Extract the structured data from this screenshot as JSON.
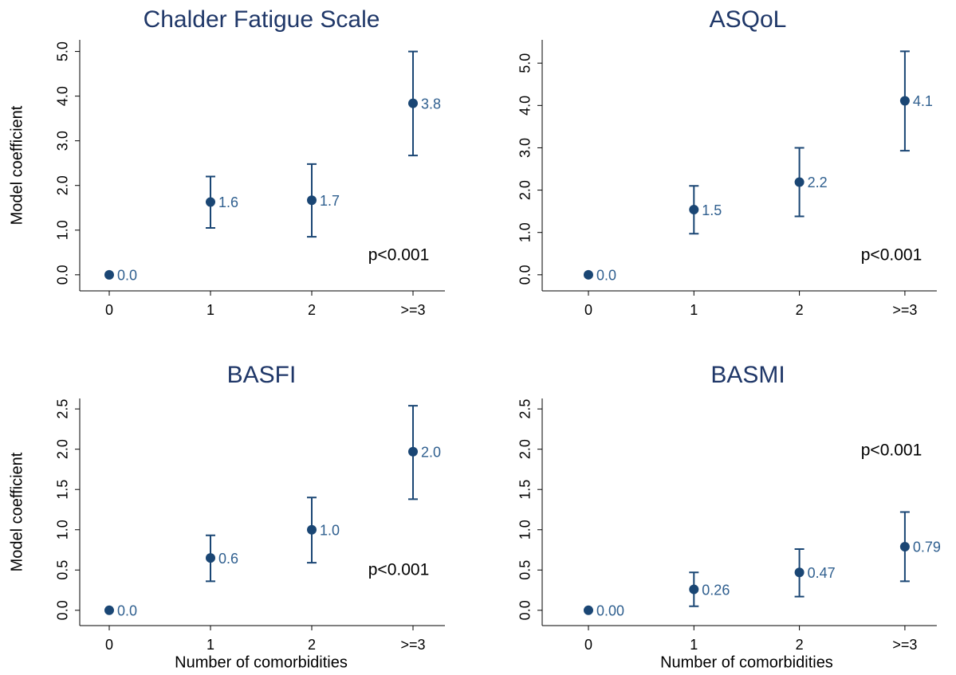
{
  "chart_data": [
    {
      "type": "errorbar",
      "title": "Chalder Fatigue Scale",
      "ylabel": "Model coefficient",
      "categories": [
        "0",
        "1",
        "2",
        ">=3"
      ],
      "values": [
        0,
        1.63,
        1.67,
        3.84
      ],
      "value_labels": [
        "0.0",
        "1.6",
        "1.7",
        "3.8"
      ],
      "lower": [
        0,
        1.05,
        0.85,
        2.67
      ],
      "upper": [
        0,
        2.2,
        2.48,
        5.0
      ],
      "color": "#1a4674",
      "annotation": "p<0.001",
      "ylim": [
        -0.36,
        5.26
      ],
      "yticks": [
        {
          "value": 0,
          "label": "0.0"
        },
        {
          "value": 1,
          "label": "1.0"
        },
        {
          "value": 2,
          "label": "2.0"
        },
        {
          "value": 3,
          "label": "3.0"
        },
        {
          "value": 4,
          "label": "4.0"
        },
        {
          "value": 5,
          "label": "5.0"
        }
      ]
    },
    {
      "type": "errorbar",
      "title": "ASQoL",
      "categories": [
        "0",
        "1",
        "2",
        ">=3"
      ],
      "values": [
        0,
        1.54,
        2.19,
        4.11
      ],
      "value_labels": [
        "0.0",
        "1.5",
        "2.2",
        "4.1"
      ],
      "lower": [
        0,
        0.97,
        1.38,
        2.93
      ],
      "upper": [
        0,
        2.1,
        3.0,
        5.28
      ],
      "color": "#1a4674",
      "annotation": "p<0.001",
      "ylim": [
        -0.38,
        5.55
      ],
      "yticks": [
        {
          "value": 0,
          "label": "0.0"
        },
        {
          "value": 1,
          "label": "1.0"
        },
        {
          "value": 2,
          "label": "2.0"
        },
        {
          "value": 3,
          "label": "3.0"
        },
        {
          "value": 4,
          "label": "4.0"
        },
        {
          "value": 5,
          "label": "5.0"
        }
      ]
    },
    {
      "type": "errorbar",
      "title": "BASFI",
      "ylabel": "Model coefficient",
      "xlabel": "Number of comorbidities",
      "categories": [
        "0",
        "1",
        "2",
        ">=3"
      ],
      "values": [
        0,
        0.65,
        1.0,
        1.97
      ],
      "value_labels": [
        "0.0",
        "0.6",
        "1.0",
        "2.0"
      ],
      "lower": [
        0,
        0.36,
        0.59,
        1.38
      ],
      "upper": [
        0,
        0.93,
        1.4,
        2.54
      ],
      "color": "#1a4674",
      "annotation": "p<0.001",
      "ylim": [
        -0.19,
        2.63
      ],
      "yticks": [
        {
          "value": 0,
          "label": "0.0"
        },
        0.5,
        {
          "value": 1,
          "label": "1.0"
        },
        1.5,
        {
          "value": 2,
          "label": "2.0"
        },
        2.5
      ]
    },
    {
      "type": "errorbar",
      "title": "BASMI",
      "xlabel": "Number of comorbidities",
      "categories": [
        "0",
        "1",
        "2",
        ">=3"
      ],
      "values": [
        0,
        0.26,
        0.47,
        0.79
      ],
      "value_labels": [
        "0.00",
        "0.26",
        "0.47",
        "0.79"
      ],
      "lower": [
        0,
        0.05,
        0.17,
        0.36
      ],
      "upper": [
        0,
        0.47,
        0.76,
        1.22
      ],
      "color": "#1a4674",
      "annotation": "p<0.001",
      "ylim": [
        -0.19,
        2.63
      ],
      "yticks": [
        {
          "value": 0,
          "label": "0.0"
        },
        0.5,
        {
          "value": 1,
          "label": "1.0"
        },
        1.5,
        {
          "value": 2,
          "label": "2.0"
        },
        2.5
      ]
    }
  ]
}
